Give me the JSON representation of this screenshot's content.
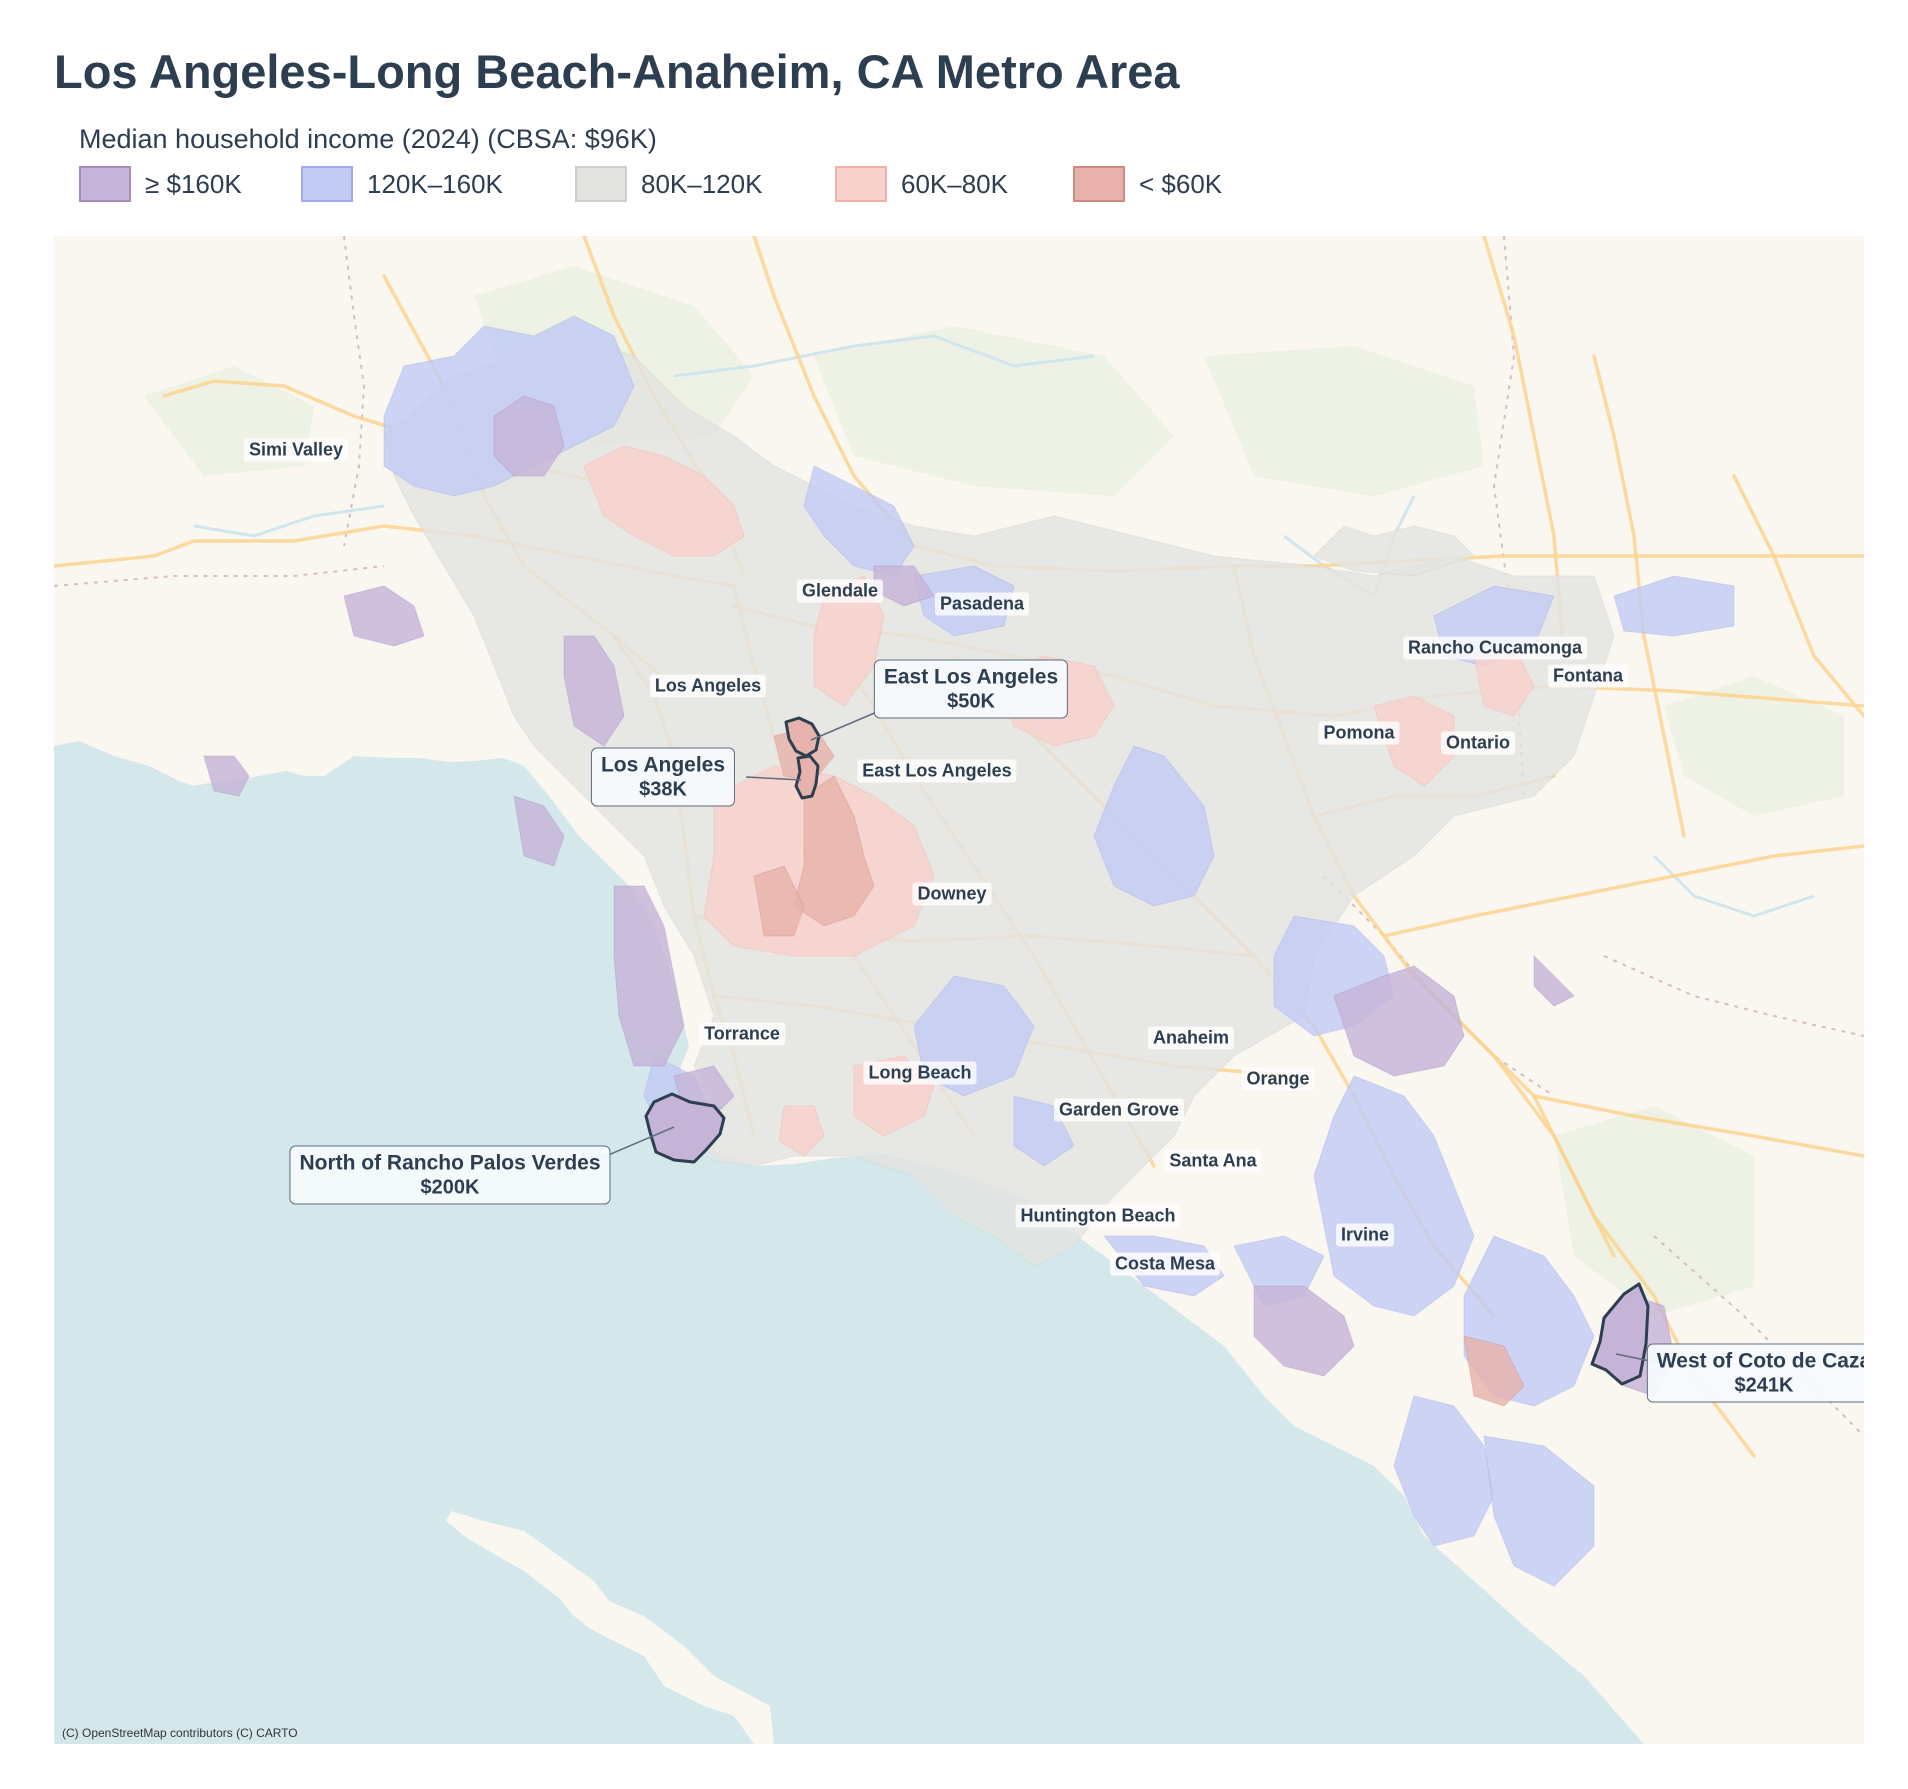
{
  "title": "Los Angeles-Long Beach-Anaheim, CA Metro Area",
  "legend": {
    "title": "Median household income (2024)  (CBSA: $96K)",
    "items": [
      {
        "label": "≥ $160K",
        "fill": "#c6b4d8",
        "stroke": "#a68cbf"
      },
      {
        "label": "120K–160K",
        "fill": "#c2caf4",
        "stroke": "#9fabe8"
      },
      {
        "label": "80K–120K",
        "fill": "#e3e3e1",
        "stroke": "#cfcfcd"
      },
      {
        "label": "60K–80K",
        "fill": "#f9d1cc",
        "stroke": "#efb0a8"
      },
      {
        "label": "< $60K",
        "fill": "#e6b2ab",
        "stroke": "#cf8b82"
      }
    ]
  },
  "map": {
    "colors": {
      "land": "#faf6f0",
      "water": "#d4e8ec",
      "highway": "#fbd38f",
      "park": "#eef2e4",
      "river": "#cfe6ee",
      "boundary": "#d8bcc4",
      "highlight_outline": "#2c3e50"
    },
    "cities": [
      "Simi Valley",
      "Glendale",
      "Pasadena",
      "Los Angeles",
      "East Los Angeles",
      "Rancho Cucamonga",
      "Fontana",
      "Pomona",
      "Ontario",
      "Downey",
      "Torrance",
      "Long Beach",
      "Anaheim",
      "Orange",
      "Garden Grove",
      "Santa Ana",
      "Huntington Beach",
      "Irvine",
      "Costa Mesa"
    ],
    "callouts": [
      {
        "name": "East Los Angeles",
        "value": "$50K",
        "category": "< $60K"
      },
      {
        "name": "Los Angeles",
        "value": "$38K",
        "category": "< $60K"
      },
      {
        "name": "North of Rancho Palos Verdes",
        "value": "$200K",
        "category": "≥ $160K"
      },
      {
        "name": "West of Coto de Caza",
        "value": "$241K",
        "category": "≥ $160K"
      }
    ],
    "attribution": "(C) OpenStreetMap contributors (C) CARTO"
  }
}
